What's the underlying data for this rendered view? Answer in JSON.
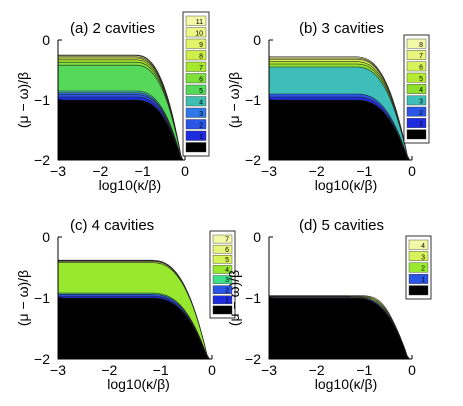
{
  "chart_data": [
    {
      "type": "area",
      "title": "(a) 2 cavities",
      "xlabel": "log10(κ/β)",
      "ylabel": "(μ − ω)/β",
      "xlim": [
        -3,
        0
      ],
      "ylim": [
        -2,
        0
      ],
      "xticks": [
        "−3",
        "−2",
        "−1",
        "0"
      ],
      "yticks": [
        "0",
        "−1",
        "−2"
      ],
      "legend": [
        "11",
        "10",
        "9",
        "8",
        "7",
        "6",
        "5",
        "4",
        "3",
        "2",
        "1",
        "0"
      ],
      "colors": [
        "#f4f9a8",
        "#ecf787",
        "#e2f36a",
        "#cfee49",
        "#a5e82d",
        "#7fe03a",
        "#56d85a",
        "#3ebeb0",
        "#2f78e8",
        "#2a56e6",
        "#1e2ce0",
        "#000000"
      ],
      "bands": [
        {
          "label": "0",
          "top": -1.0
        },
        {
          "label": "1",
          "top": -0.95
        },
        {
          "label": "2",
          "top": -0.91
        },
        {
          "label": "3",
          "top": -0.88
        },
        {
          "label": "4",
          "top": -0.85
        },
        {
          "label": "5",
          "top": -0.42
        },
        {
          "label": "6",
          "top": -0.37
        },
        {
          "label": "7",
          "top": -0.33
        },
        {
          "label": "8",
          "top": -0.3
        },
        {
          "label": "9",
          "top": -0.28
        },
        {
          "label": "10",
          "top": -0.26
        },
        {
          "label": "11",
          "top": -0.25
        }
      ],
      "top_shape": "flat to log10(κ/β) ≈ −1, then bends down to −2 near 0"
    },
    {
      "type": "area",
      "title": "(b) 3 cavities",
      "xlabel": "log10(κ/β)",
      "ylabel": "(μ − ω)/β",
      "xlim": [
        -3,
        0
      ],
      "ylim": [
        -2,
        0
      ],
      "xticks": [
        "−3",
        "−2",
        "−1",
        "0"
      ],
      "yticks": [
        "0",
        "−1",
        "−2"
      ],
      "legend": [
        "8",
        "7",
        "6",
        "5",
        "4",
        "3",
        "2",
        "1",
        "0"
      ],
      "colors": [
        "#f4f9a8",
        "#e8f57c",
        "#d8f25a",
        "#b5ea33",
        "#8fe02c",
        "#3ebeb8",
        "#2a56e6",
        "#1e2ce0",
        "#000000"
      ],
      "bands": [
        {
          "label": "0",
          "top": -1.0
        },
        {
          "label": "1",
          "top": -0.95
        },
        {
          "label": "2",
          "top": -0.9
        },
        {
          "label": "3",
          "top": -0.45
        },
        {
          "label": "4",
          "top": -0.4
        },
        {
          "label": "5",
          "top": -0.36
        },
        {
          "label": "6",
          "top": -0.32
        },
        {
          "label": "7",
          "top": -0.3
        },
        {
          "label": "8",
          "top": -0.28
        }
      ],
      "top_shape": "flat to log10(κ/β) ≈ −1, then bends down to −2 near 0"
    },
    {
      "type": "area",
      "title": "(c) 4 cavities",
      "xlabel": "log10(κ/β)",
      "ylabel": "(μ − ω)/β",
      "xlim": [
        -3,
        0
      ],
      "ylim": [
        -2,
        0
      ],
      "xticks": [
        "−3",
        "−2",
        "−1",
        "0"
      ],
      "yticks": [
        "0",
        "−1",
        "−2"
      ],
      "legend": [
        "7",
        "6",
        "5",
        "4",
        "3",
        "2",
        "1",
        "0"
      ],
      "colors": [
        "#f4f9a8",
        "#e8f57c",
        "#d8f25a",
        "#97e82e",
        "#3fe08c",
        "#2a56e6",
        "#1e2ce0",
        "#000000"
      ],
      "bands": [
        {
          "label": "0",
          "top": -1.0
        },
        {
          "label": "1",
          "top": -0.97
        },
        {
          "label": "2",
          "top": -0.94
        },
        {
          "label": "3",
          "top": -0.92
        },
        {
          "label": "4",
          "top": -0.42
        },
        {
          "label": "5",
          "top": -0.4
        },
        {
          "label": "6",
          "top": -0.39
        },
        {
          "label": "7",
          "top": -0.38
        }
      ],
      "top_shape": "flat to log10(κ/β) ≈ −1, then bends down to −2 near 0"
    },
    {
      "type": "area",
      "title": "(d) 5 cavities",
      "xlabel": "log10(κ/β)",
      "ylabel": "(μ − ω)/β",
      "xlim": [
        -3,
        0
      ],
      "ylim": [
        -2,
        0
      ],
      "xticks": [
        "−3",
        "−2",
        "−1",
        "0"
      ],
      "yticks": [
        "0",
        "−1",
        "−2"
      ],
      "legend": [
        "4",
        "3",
        "2",
        "1",
        "0"
      ],
      "colors": [
        "#f4f9a8",
        "#d8f25a",
        "#97e82e",
        "#2a56e6",
        "#000000"
      ],
      "bands": [
        {
          "label": "0",
          "top": -1.0
        },
        {
          "label": "1",
          "top": -0.99
        },
        {
          "label": "2",
          "top": -0.98
        },
        {
          "label": "3",
          "top": -0.97
        },
        {
          "label": "4",
          "top": -0.96
        }
      ],
      "top_shape": "flat near −1, small bump near log10(κ/β) ≈ −0.6, then drops to −2 near 0"
    }
  ]
}
